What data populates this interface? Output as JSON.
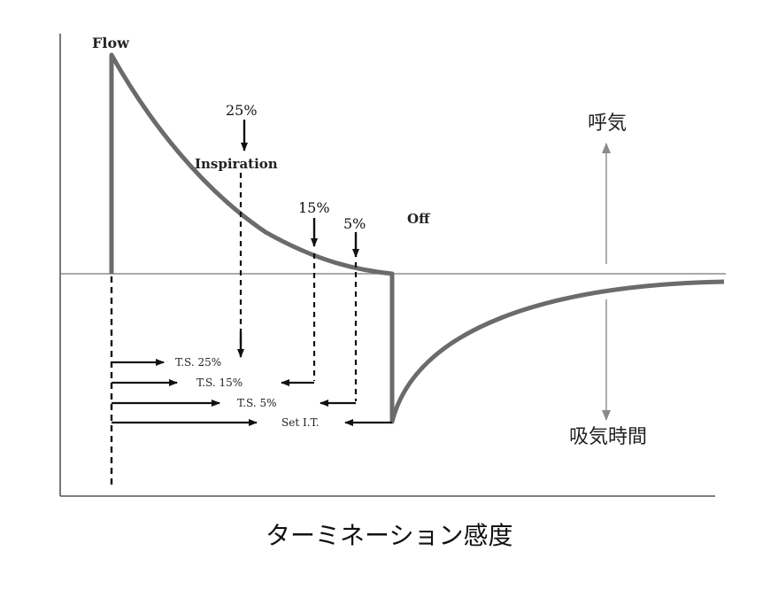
{
  "flow_label": "Flow",
  "inspiration_label": "Inspiration",
  "off_label": "Off",
  "pct_25": "25%",
  "pct_15": "15%",
  "pct_5": "5%",
  "ts_25": "T.S. 25%",
  "ts_15": "T.S. 15%",
  "ts_5": "T.S. 5%",
  "set_it": "Set I.T.",
  "expiration_label": "呼気",
  "insp_time_label": "吸気時間",
  "caption": "ターミネーション感度",
  "colors": {
    "curve": "#6b6b6b",
    "ink": "#111111",
    "axis": "#555555",
    "side_arrow": "#8a8a8a"
  }
}
